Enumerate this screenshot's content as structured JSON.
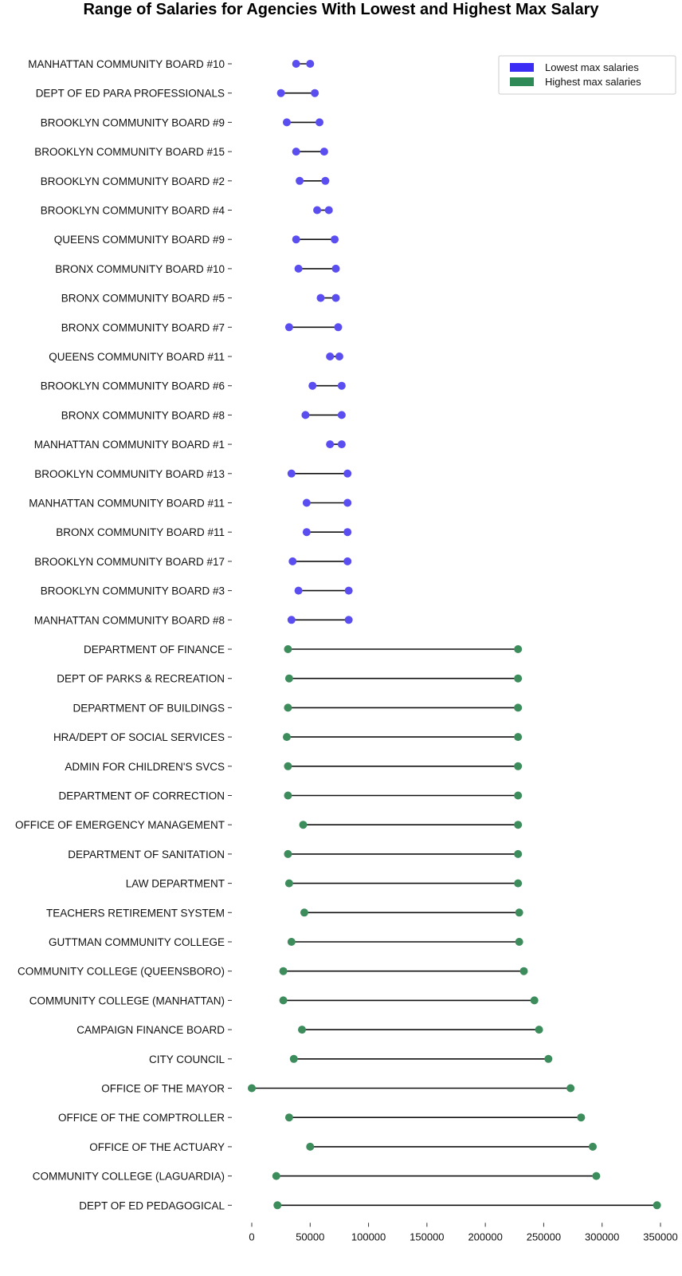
{
  "chart_data": {
    "type": "dumbbell",
    "title": "Range of Salaries for Agencies With Lowest and Highest Max Salary",
    "xlabel": "",
    "ylabel": "",
    "xlim": [
      0,
      350000
    ],
    "x_ticks": [
      "0",
      "50000",
      "100000",
      "150000",
      "200000",
      "250000",
      "300000",
      "350000"
    ],
    "legend": {
      "position": "top-right",
      "entries": [
        {
          "name": "Lowest max salaries",
          "color": "#3b2cf5"
        },
        {
          "name": "Highest max salaries",
          "color": "#2e8b57"
        }
      ]
    },
    "series": [
      {
        "name": "Lowest max salaries",
        "color": "#5b4ef0",
        "rows": [
          {
            "label": "MANHATTAN COMMUNITY BOARD #10",
            "min": 38000,
            "max": 50000
          },
          {
            "label": "DEPT OF ED PARA PROFESSIONALS",
            "min": 25000,
            "max": 54000
          },
          {
            "label": "BROOKLYN COMMUNITY BOARD #9",
            "min": 30000,
            "max": 58000
          },
          {
            "label": "BROOKLYN COMMUNITY BOARD #15",
            "min": 38000,
            "max": 62000
          },
          {
            "label": "BROOKLYN COMMUNITY BOARD #2",
            "min": 41000,
            "max": 63000
          },
          {
            "label": "BROOKLYN COMMUNITY BOARD #4",
            "min": 56000,
            "max": 66000
          },
          {
            "label": "QUEENS COMMUNITY BOARD #9",
            "min": 38000,
            "max": 71000
          },
          {
            "label": "BRONX COMMUNITY BOARD #10",
            "min": 40000,
            "max": 72000
          },
          {
            "label": "BRONX COMMUNITY BOARD #5",
            "min": 59000,
            "max": 72000
          },
          {
            "label": "BRONX COMMUNITY BOARD #7",
            "min": 32000,
            "max": 74000
          },
          {
            "label": "QUEENS COMMUNITY BOARD #11",
            "min": 67000,
            "max": 75000
          },
          {
            "label": "BROOKLYN COMMUNITY BOARD #6",
            "min": 52000,
            "max": 77000
          },
          {
            "label": "BRONX COMMUNITY BOARD #8",
            "min": 46000,
            "max": 77000
          },
          {
            "label": "MANHATTAN COMMUNITY BOARD #1",
            "min": 67000,
            "max": 77000
          },
          {
            "label": "BROOKLYN COMMUNITY BOARD #13",
            "min": 34000,
            "max": 82000
          },
          {
            "label": "MANHATTAN COMMUNITY BOARD #11",
            "min": 47000,
            "max": 82000
          },
          {
            "label": "BRONX COMMUNITY BOARD #11",
            "min": 47000,
            "max": 82000
          },
          {
            "label": "BROOKLYN COMMUNITY BOARD #17",
            "min": 35000,
            "max": 82000
          },
          {
            "label": "BROOKLYN COMMUNITY BOARD #3",
            "min": 40000,
            "max": 83000
          },
          {
            "label": "MANHATTAN COMMUNITY BOARD #8",
            "min": 34000,
            "max": 83000
          }
        ]
      },
      {
        "name": "Highest max salaries",
        "color": "#3c8c5c",
        "rows": [
          {
            "label": "DEPARTMENT OF FINANCE",
            "min": 31000,
            "max": 228000
          },
          {
            "label": "DEPT OF PARKS & RECREATION",
            "min": 32000,
            "max": 228000
          },
          {
            "label": "DEPARTMENT OF BUILDINGS",
            "min": 31000,
            "max": 228000
          },
          {
            "label": "HRA/DEPT OF SOCIAL SERVICES",
            "min": 30000,
            "max": 228000
          },
          {
            "label": "ADMIN FOR CHILDREN'S SVCS",
            "min": 31000,
            "max": 228000
          },
          {
            "label": "DEPARTMENT OF CORRECTION",
            "min": 31000,
            "max": 228000
          },
          {
            "label": "OFFICE OF EMERGENCY MANAGEMENT",
            "min": 44000,
            "max": 228000
          },
          {
            "label": "DEPARTMENT OF SANITATION",
            "min": 31000,
            "max": 228000
          },
          {
            "label": "LAW DEPARTMENT",
            "min": 32000,
            "max": 228000
          },
          {
            "label": "TEACHERS RETIREMENT SYSTEM",
            "min": 45000,
            "max": 229000
          },
          {
            "label": "GUTTMAN COMMUNITY COLLEGE",
            "min": 34000,
            "max": 229000
          },
          {
            "label": "COMMUNITY COLLEGE (QUEENSBORO)",
            "min": 27000,
            "max": 233000
          },
          {
            "label": "COMMUNITY COLLEGE (MANHATTAN)",
            "min": 27000,
            "max": 242000
          },
          {
            "label": "CAMPAIGN FINANCE BOARD",
            "min": 43000,
            "max": 246000
          },
          {
            "label": "CITY COUNCIL",
            "min": 36000,
            "max": 254000
          },
          {
            "label": "OFFICE OF THE MAYOR",
            "min": 0,
            "max": 273000
          },
          {
            "label": "OFFICE OF THE COMPTROLLER",
            "min": 32000,
            "max": 282000
          },
          {
            "label": "OFFICE OF THE ACTUARY",
            "min": 50000,
            "max": 292000
          },
          {
            "label": "COMMUNITY COLLEGE (LAGUARDIA)",
            "min": 21000,
            "max": 295000
          },
          {
            "label": "DEPT OF ED PEDAGOGICAL",
            "min": 22000,
            "max": 347000
          }
        ]
      }
    ]
  }
}
